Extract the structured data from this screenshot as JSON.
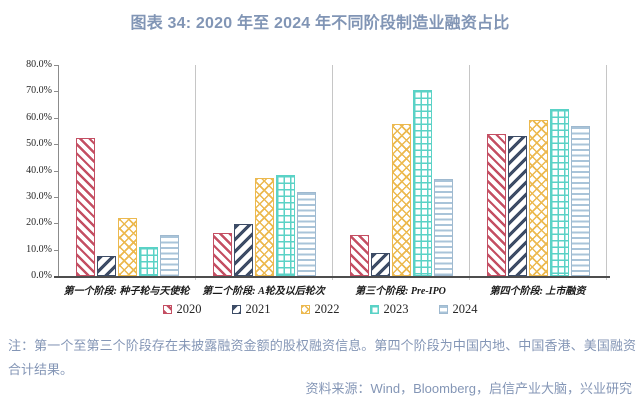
{
  "note": "注：第一个至第三个阶段存在未披露融资金额的股权融资信息。第四个阶段为中国内地、中国香港、美国融资合计结果。",
  "source": "资料来源：Wind，Bloomberg，启信产业大脑，兴业研究",
  "chart_data": {
    "type": "bar",
    "title": "图表 34: 2020 年至 2024 年不同阶段制造业融资占比",
    "categories": [
      "第一个阶段: 种子轮与天使轮",
      "第二个阶段: A轮及以后轮次",
      "第三个阶段: Pre-IPO",
      "第四个阶段: 上市融资"
    ],
    "series": [
      {
        "name": "2020",
        "color": "#C44F63",
        "pattern": "diagonal-down-hatch",
        "values": [
          52.3,
          16.3,
          15.4,
          53.7
        ]
      },
      {
        "name": "2021",
        "color": "#3D4C66",
        "pattern": "diagonal-up-hatch",
        "values": [
          7.6,
          19.7,
          8.9,
          53.0
        ]
      },
      {
        "name": "2022",
        "color": "#ECB94F",
        "pattern": "diamond-crosshatch",
        "values": [
          22.1,
          37.3,
          57.5,
          59.0
        ]
      },
      {
        "name": "2023",
        "color": "#5AD2C6",
        "pattern": "square-grid",
        "values": [
          10.9,
          38.4,
          70.5,
          63.2
        ]
      },
      {
        "name": "2024",
        "color": "#A9C4D9",
        "pattern": "horizontal-lines",
        "values": [
          15.4,
          31.9,
          36.6,
          56.8
        ]
      }
    ],
    "ylim": [
      0,
      80
    ],
    "ytick_step": 10,
    "yticks": [
      "0.0%",
      "10.0%",
      "20.0%",
      "30.0%",
      "40.0%",
      "50.0%",
      "60.0%",
      "70.0%",
      "80.0%"
    ],
    "grid": "off",
    "category_separators": true,
    "legend_position": "bottom"
  }
}
